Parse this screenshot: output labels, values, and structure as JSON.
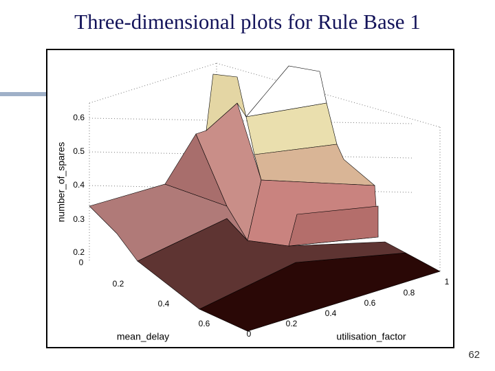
{
  "title": "Three-dimensional plots for Rule Base 1",
  "page_number": "62",
  "plot": {
    "z_label": "number_of_spares",
    "z_ticks": [
      "0.6",
      "0.5",
      "0.4",
      "0.3",
      "0.2"
    ],
    "x_label": "mean_delay",
    "x_ticks": [
      "0",
      "0.2",
      "0.4",
      "0.6"
    ],
    "y_label": "utilisation_factor",
    "y_ticks": [
      "0",
      "0.2",
      "0.4",
      "0.6",
      "0.8",
      "1"
    ]
  }
}
